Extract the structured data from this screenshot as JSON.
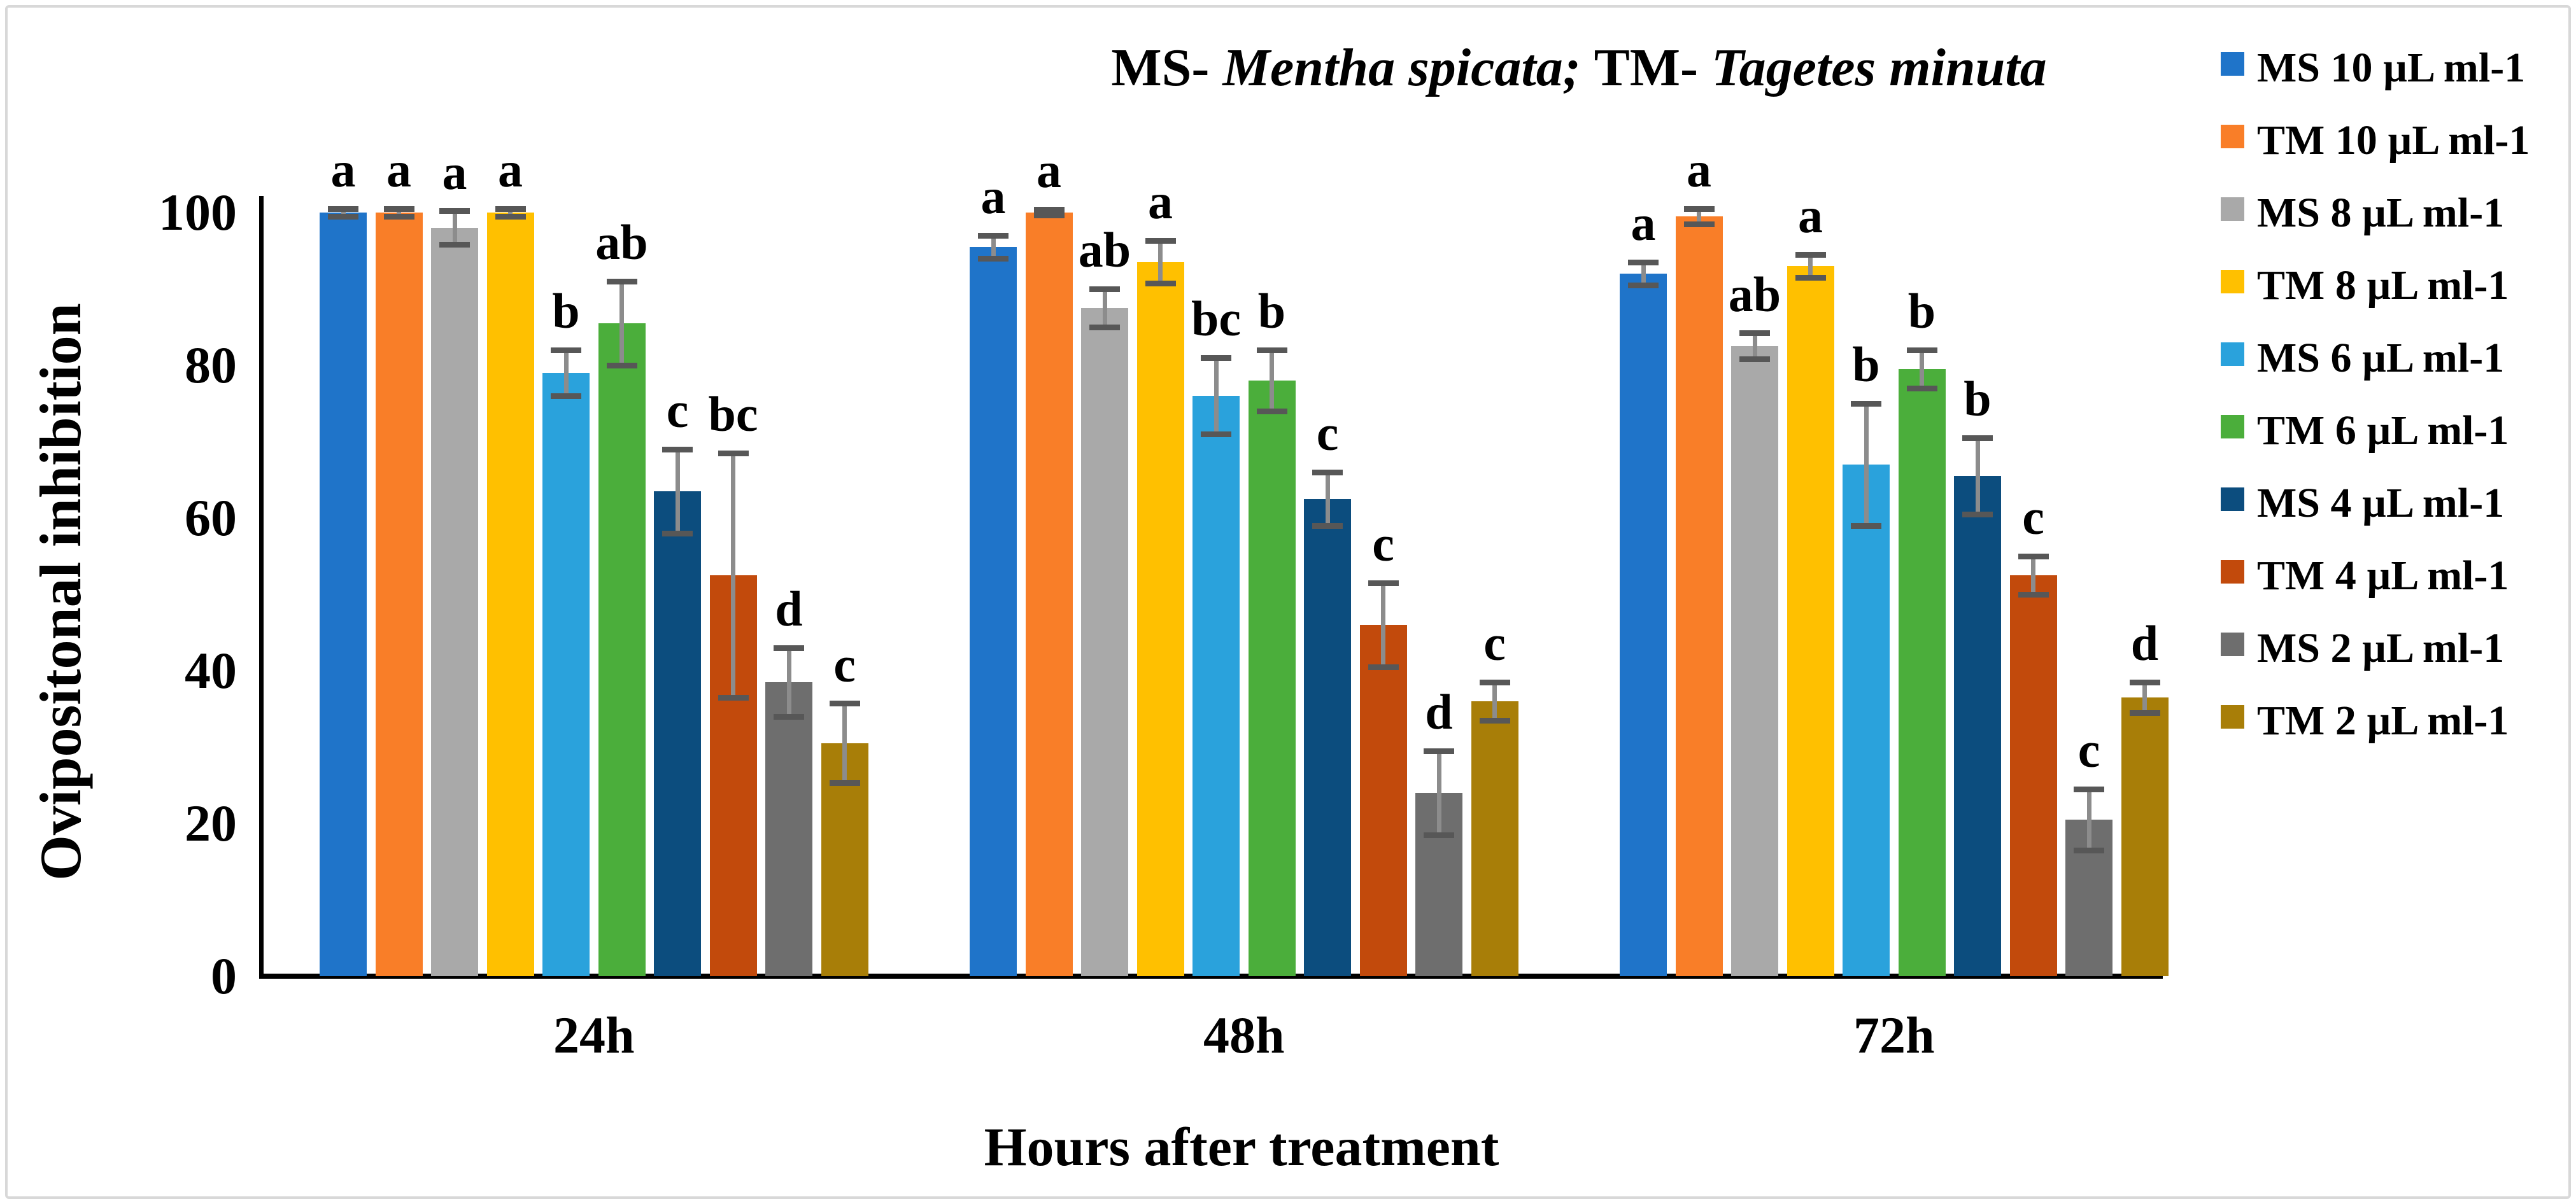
{
  "title": {
    "segments": [
      {
        "text": "MS- ",
        "italic": false
      },
      {
        "text": "Mentha spicata; ",
        "italic": true
      },
      {
        "text": "TM- ",
        "italic": false
      },
      {
        "text": "Tagetes minuta",
        "italic": true
      }
    ],
    "plain": "MS- Mentha spicata; TM- Tagetes minuta"
  },
  "y_axis": {
    "label": "Ovipositonal inhibition",
    "ticks": [
      0,
      20,
      40,
      60,
      80,
      100
    ],
    "min": 0,
    "max": 100
  },
  "x_axis": {
    "label": "Hours after treatment",
    "categories": [
      "24h",
      "48h",
      "72h"
    ]
  },
  "colors": {
    "axis": "#000000",
    "error_bar_line": "#8c8c8c",
    "error_bar_cap": "#575757",
    "frame_border": "#d8d8d8",
    "background": "#ffffff"
  },
  "chart_data": {
    "type": "bar",
    "title": "MS- Mentha spicata; TM- Tagetes minuta",
    "xlabel": "Hours after treatment",
    "ylabel": "Ovipositonal inhibition",
    "ylim": [
      0,
      110
    ],
    "grid": false,
    "legend_position": "right",
    "error_bars": true,
    "categories": [
      "24h",
      "48h",
      "72h"
    ],
    "series": [
      {
        "name": "MS 10 µL ml-1",
        "color": "#1f74c9",
        "values": [
          100,
          95.5,
          92
        ],
        "errors": [
          0.5,
          1.5,
          1.5
        ],
        "letters": [
          "a",
          "a",
          "a"
        ]
      },
      {
        "name": "TM 10 µL ml-1",
        "color": "#f97e28",
        "values": [
          100,
          100,
          99.5
        ],
        "errors": [
          0.5,
          0.4,
          1
        ],
        "letters": [
          "a",
          "a",
          "a"
        ]
      },
      {
        "name": "MS 8 µL ml-1",
        "color": "#a9a9a9",
        "values": [
          98,
          87.5,
          82.5
        ],
        "errors": [
          2.2,
          2.5,
          1.7
        ],
        "letters": [
          "a",
          "ab",
          "ab"
        ]
      },
      {
        "name": "TM 8 µL ml-1",
        "color": "#ffc000",
        "values": [
          100,
          93.5,
          93
        ],
        "errors": [
          0.5,
          2.8,
          1.5
        ],
        "letters": [
          "a",
          "a",
          "a"
        ]
      },
      {
        "name": "MS 6 µL ml-1",
        "color": "#2aa2dc",
        "values": [
          79,
          76,
          67
        ],
        "errors": [
          3,
          5,
          8
        ],
        "letters": [
          "b",
          "bc",
          "b"
        ]
      },
      {
        "name": "TM 6 µL ml-1",
        "color": "#4bae3b",
        "values": [
          85.5,
          78,
          79.5
        ],
        "errors": [
          5.5,
          4,
          2.5
        ],
        "letters": [
          "ab",
          "b",
          "b"
        ]
      },
      {
        "name": "MS 4 µL ml-1",
        "color": "#0c4d7e",
        "values": [
          63.5,
          62.5,
          65.5
        ],
        "errors": [
          5.5,
          3.5,
          5
        ],
        "letters": [
          "c",
          "c",
          "b"
        ]
      },
      {
        "name": "TM 4 µL ml-1",
        "color": "#c24a0c",
        "values": [
          52.5,
          46,
          52.5
        ],
        "errors": [
          16,
          5.5,
          2.5
        ],
        "letters": [
          "bc",
          "c",
          "c"
        ]
      },
      {
        "name": "MS 2 µL ml-1",
        "color": "#6e6e6e",
        "values": [
          38.5,
          24,
          20.5
        ],
        "errors": [
          4.5,
          5.5,
          4
        ],
        "letters": [
          "d",
          "d",
          "c"
        ]
      },
      {
        "name": "TM 2 µL ml-1",
        "color": "#a87e08",
        "values": [
          30.5,
          36,
          36.5
        ],
        "errors": [
          5.2,
          2.5,
          2
        ],
        "letters": [
          "c",
          "c",
          "d"
        ]
      }
    ]
  }
}
